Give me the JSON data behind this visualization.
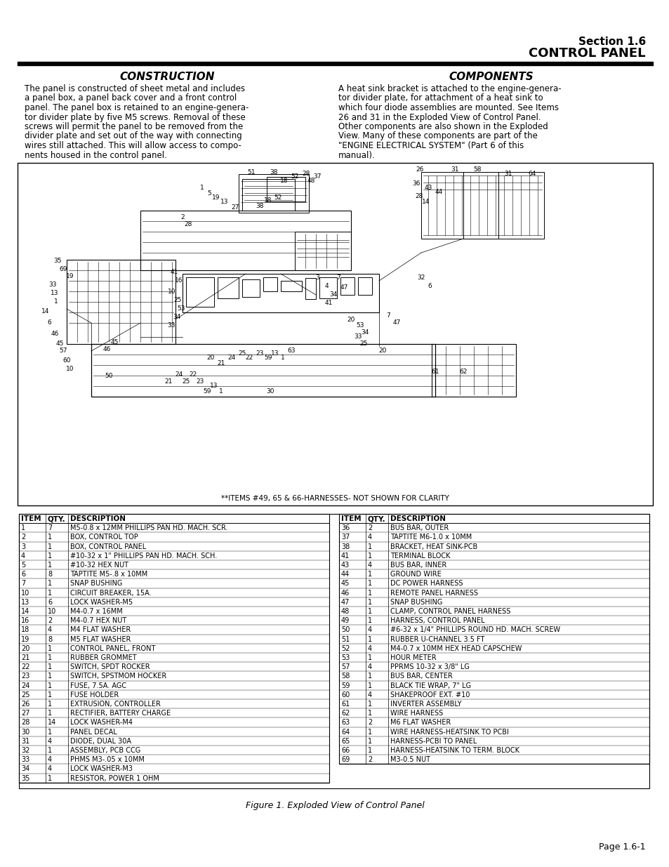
{
  "page_title_line1": "Section 1.6",
  "page_title_line2": "CONTROL PANEL",
  "section_title_left": "CONSTRUCTION",
  "section_title_right": "COMPONENTS",
  "construction_lines": [
    "The panel is constructed of sheet metal and includes",
    "a panel box, a panel back cover and a front control",
    "panel. The panel box is retained to an engine-genera-",
    "tor divider plate by five M5 screws. Removal of these",
    "screws will permit the panel to be removed from the",
    "divider plate and set out of the way with connecting",
    "wires still attached. This will allow access to compo-",
    "nents housed in the control panel."
  ],
  "components_lines": [
    "A heat sink bracket is attached to the engine-genera-",
    "tor divider plate, for attachment of a heat sink to",
    "which four diode assemblies are mounted. See Items",
    "26 and 31 in the Exploded View of Control Panel.",
    "Other components are also shown in the Exploded",
    "View. Many of these components are part of the",
    "\"ENGINE ELECTRICAL SYSTEM\" (Part 6 of this",
    "manual)."
  ],
  "figure_note": "**ITEMS #49, 65 & 66-HARNESSES- NOT SHOWN FOR CLARITY",
  "figure_caption": "Figure 1. Exploded View of Control Panel",
  "page_number": "Page 1.6-1",
  "table_headers": [
    "ITEM",
    "QTY.",
    "DESCRIPTION"
  ],
  "table_left": [
    [
      "1",
      "7",
      "M5-0.8 x 12MM PHILLIPS PAN HD. MACH. SCR."
    ],
    [
      "2",
      "1",
      "BOX, CONTROL TOP"
    ],
    [
      "3",
      "1",
      "BOX, CONTROL PANEL"
    ],
    [
      "4",
      "1",
      "#10-32 x 1\" PHILLIPS PAN HD. MACH. SCH."
    ],
    [
      "5",
      "1",
      "#10-32 HEX NUT"
    ],
    [
      "6",
      "8",
      "TAPTITE M5-.8 x 10MM"
    ],
    [
      "7",
      "1",
      "SNAP BUSHING"
    ],
    [
      "10",
      "1",
      "CIRCUIT BREAKER, 15A."
    ],
    [
      "13",
      "6",
      "LOCK WASHER-M5"
    ],
    [
      "14",
      "10",
      "M4-0.7 x 16MM"
    ],
    [
      "16",
      "2",
      "M4-0.7 HEX NUT"
    ],
    [
      "18",
      "4",
      "M4 FLAT WASHER"
    ],
    [
      "19",
      "8",
      "M5 FLAT WASHER"
    ],
    [
      "20",
      "1",
      "CONTROL PANEL, FRONT"
    ],
    [
      "21",
      "1",
      "RUBBER GROMMET"
    ],
    [
      "22",
      "1",
      "SWITCH, SPDT ROCKER"
    ],
    [
      "23",
      "1",
      "SWITCH, SPSTMOM HOCKER"
    ],
    [
      "24",
      "1",
      "FUSE, 7.5A. AGC"
    ],
    [
      "25",
      "1",
      "FUSE HOLDER"
    ],
    [
      "26",
      "1",
      "EXTRUSION, CONTROLLER"
    ],
    [
      "27",
      "1",
      "RECTIFIER, BATTERY CHARGE"
    ],
    [
      "28",
      "14",
      "LOCK WASHER-M4"
    ],
    [
      "30",
      "1",
      "PANEL DECAL"
    ],
    [
      "31",
      "4",
      "DIODE, DUAL 30A"
    ],
    [
      "32",
      "1",
      "ASSEMBLY, PCB CCG"
    ],
    [
      "33",
      "4",
      "PHMS M3-.05 x 10MM"
    ],
    [
      "34",
      "4",
      "LOCK WASHER-M3"
    ],
    [
      "35",
      "1",
      "RESISTOR, POWER 1 OHM"
    ]
  ],
  "table_right": [
    [
      "36",
      "2",
      "BUS BAR, OUTER"
    ],
    [
      "37",
      "4",
      "TAPTITE M6-1.0 x 10MM"
    ],
    [
      "38",
      "1",
      "BRACKET, HEAT SINK-PCB"
    ],
    [
      "41",
      "1",
      "TERMINAL BLOCK"
    ],
    [
      "43",
      "4",
      "BUS BAR, INNER"
    ],
    [
      "44",
      "1",
      "GROUND WIRE"
    ],
    [
      "45",
      "1",
      "DC POWER HARNESS"
    ],
    [
      "46",
      "1",
      "REMOTE PANEL HARNESS"
    ],
    [
      "47",
      "1",
      "SNAP BUSHING"
    ],
    [
      "48",
      "1",
      "CLAMP, CONTROL PANEL HARNESS"
    ],
    [
      "49",
      "1",
      "HARNESS, CONTROL PANEL"
    ],
    [
      "50",
      "4",
      "#6-32 x 1/4\" PHILLIPS ROUND HD. MACH. SCREW"
    ],
    [
      "51",
      "1",
      "RUBBER U-CHANNEL 3.5 FT"
    ],
    [
      "52",
      "4",
      "M4-0.7 x 10MM HEX HEAD CAPSCHEW"
    ],
    [
      "53",
      "1",
      "HOUR METER"
    ],
    [
      "57",
      "4",
      "PPRMS 10-32 x 3/8\" LG"
    ],
    [
      "58",
      "1",
      "BUS BAR, CENTER"
    ],
    [
      "59",
      "1",
      "BLACK TIE WRAP, 7\" LG"
    ],
    [
      "60",
      "4",
      "SHAKEPROOF EXT. #10"
    ],
    [
      "61",
      "1",
      "INVERTER ASSEMBLY"
    ],
    [
      "62",
      "1",
      "WIRE HARNESS"
    ],
    [
      "63",
      "2",
      "M6 FLAT WASHER"
    ],
    [
      "64",
      "1",
      "WIRE HARNESS-HEATSINK TO PCBI"
    ],
    [
      "65",
      "1",
      "HARNESS-PCBI TO PANEL"
    ],
    [
      "66",
      "1",
      "HARNESS-HEATSINK TO TERM. BLOCK"
    ],
    [
      "69",
      "2",
      "M3-0.5 NUT"
    ]
  ]
}
